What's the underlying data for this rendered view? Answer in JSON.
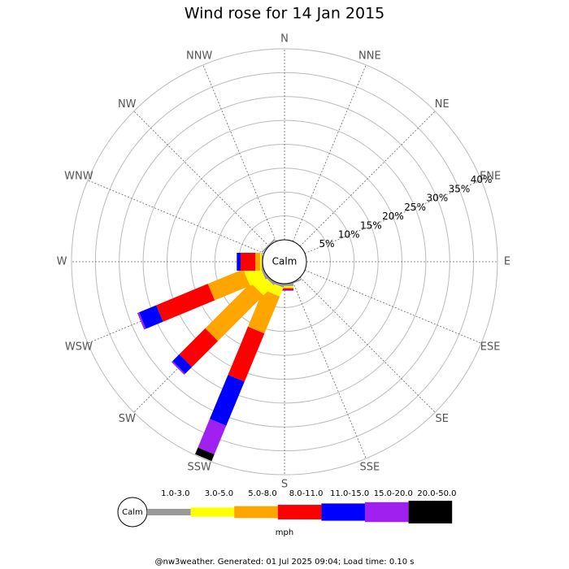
{
  "chart_data": {
    "type": "wind_rose",
    "title": "Wind rose for 14 Jan 2015",
    "directions": [
      "N",
      "NNE",
      "NE",
      "ENE",
      "E",
      "ESE",
      "SE",
      "SSE",
      "S",
      "SSW",
      "SW",
      "WSW",
      "W",
      "WNW",
      "NW",
      "NNW"
    ],
    "center_label": "Calm",
    "rlim": [
      0,
      40
    ],
    "rticks": [
      {
        "value": 5,
        "label": "5%"
      },
      {
        "value": 10,
        "label": "10%"
      },
      {
        "value": 15,
        "label": "15%"
      },
      {
        "value": 20,
        "label": "20%"
      },
      {
        "value": 25,
        "label": "25%"
      },
      {
        "value": 30,
        "label": "30%"
      },
      {
        "value": 35,
        "label": "35%"
      },
      {
        "value": 40,
        "label": "40%"
      }
    ],
    "legend_unit": "mph",
    "footer": "@nw3weather. Generated: 01 Jul 2025 09:04; Load time: 0.10 s",
    "series": [
      {
        "name": "1.0-3.0",
        "color": "#999999",
        "values": [
          0,
          0,
          0,
          0,
          0,
          0,
          0,
          0.3,
          0.5,
          0.5,
          0.5,
          0.5,
          0.2,
          0,
          0.3,
          0
        ]
      },
      {
        "name": "3.0-5.0",
        "color": "#ffff00",
        "values": [
          0,
          0,
          0,
          0,
          0,
          0,
          0,
          0,
          0.3,
          2,
          3,
          3.5,
          0.3,
          0,
          0,
          0
        ]
      },
      {
        "name": "5.0-8.0",
        "color": "#ffa500",
        "values": [
          0,
          0,
          0,
          0,
          0,
          0,
          0,
          0,
          0.2,
          8.4,
          13.5,
          8,
          1,
          0,
          0,
          0
        ]
      },
      {
        "name": "8.0-11.0",
        "color": "#ff0000",
        "values": [
          0,
          0,
          0,
          0,
          0,
          0,
          0,
          0,
          0.3,
          10.9,
          7.7,
          11.7,
          3.1,
          0,
          0,
          0
        ]
      },
      {
        "name": "11.0-15.0",
        "color": "#0000ff",
        "values": [
          0,
          0,
          0,
          0,
          0,
          0,
          0,
          0,
          0.1,
          10,
          2,
          3.9,
          0.8,
          0,
          0,
          0
        ]
      },
      {
        "name": "15.0-20.0",
        "color": "#a020f0",
        "values": [
          0,
          0,
          0,
          0,
          0,
          0,
          0,
          0,
          0.1,
          6.5,
          0.3,
          0.4,
          0,
          0,
          0,
          0
        ]
      },
      {
        "name": "20.0-50.0",
        "color": "#000000",
        "values": [
          0,
          0,
          0,
          0,
          0,
          0,
          0,
          0,
          0,
          1.5,
          0,
          0,
          0,
          0,
          0,
          0
        ]
      }
    ]
  }
}
